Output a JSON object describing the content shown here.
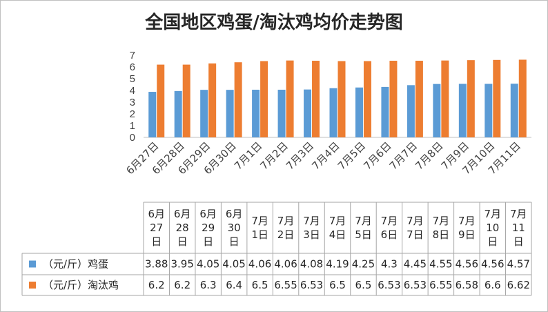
{
  "chart_data": {
    "type": "bar",
    "title": "全国地区鸡蛋/淘汰鸡均价走势图",
    "categories": [
      "6月27日",
      "6月28日",
      "6月29日",
      "6月30日",
      "7月1日",
      "7月2日",
      "7月3日",
      "7月4日",
      "7月5日",
      "7月6日",
      "7月7日",
      "7月8日",
      "7月9日",
      "7月10日",
      "7月11日"
    ],
    "table_header_lines": [
      [
        "6月",
        "27",
        "日"
      ],
      [
        "6月",
        "28",
        "日"
      ],
      [
        "6月",
        "29",
        "日"
      ],
      [
        "6月",
        "30",
        "日"
      ],
      [
        "7月",
        "1日"
      ],
      [
        "7月",
        "2日"
      ],
      [
        "7月",
        "3日"
      ],
      [
        "7月",
        "4日"
      ],
      [
        "7月",
        "5日"
      ],
      [
        "7月",
        "6日"
      ],
      [
        "7月",
        "7日"
      ],
      [
        "7月",
        "8日"
      ],
      [
        "7月",
        "9日"
      ],
      [
        "7月",
        "10",
        "日"
      ],
      [
        "7月",
        "11",
        "日"
      ]
    ],
    "series": [
      {
        "name": "（元/斤）鸡蛋",
        "color": "#5b9bd5",
        "values": [
          3.88,
          3.95,
          4.05,
          4.05,
          4.06,
          4.06,
          4.08,
          4.19,
          4.25,
          4.3,
          4.45,
          4.55,
          4.56,
          4.56,
          4.57
        ],
        "labels": [
          "3.88",
          "3.95",
          "4.05",
          "4.05",
          "4.06",
          "4.06",
          "4.08",
          "4.19",
          "4.25",
          "4.3",
          "4.45",
          "4.55",
          "4.56",
          "4.56",
          "4.57"
        ]
      },
      {
        "name": "（元/斤）淘汰鸡",
        "color": "#ed7d31",
        "values": [
          6.2,
          6.2,
          6.3,
          6.4,
          6.5,
          6.55,
          6.53,
          6.5,
          6.5,
          6.53,
          6.53,
          6.55,
          6.58,
          6.6,
          6.62
        ],
        "labels": [
          "6.2",
          "6.2",
          "6.3",
          "6.4",
          "6.5",
          "6.55",
          "6.53",
          "6.5",
          "6.5",
          "6.53",
          "6.53",
          "6.55",
          "6.58",
          "6.6",
          "6.62"
        ]
      }
    ],
    "ylim": [
      0,
      7
    ],
    "yticks": [
      "0",
      "1",
      "2",
      "3",
      "4",
      "5",
      "6",
      "7"
    ],
    "grid": false,
    "legend": "data-table"
  }
}
